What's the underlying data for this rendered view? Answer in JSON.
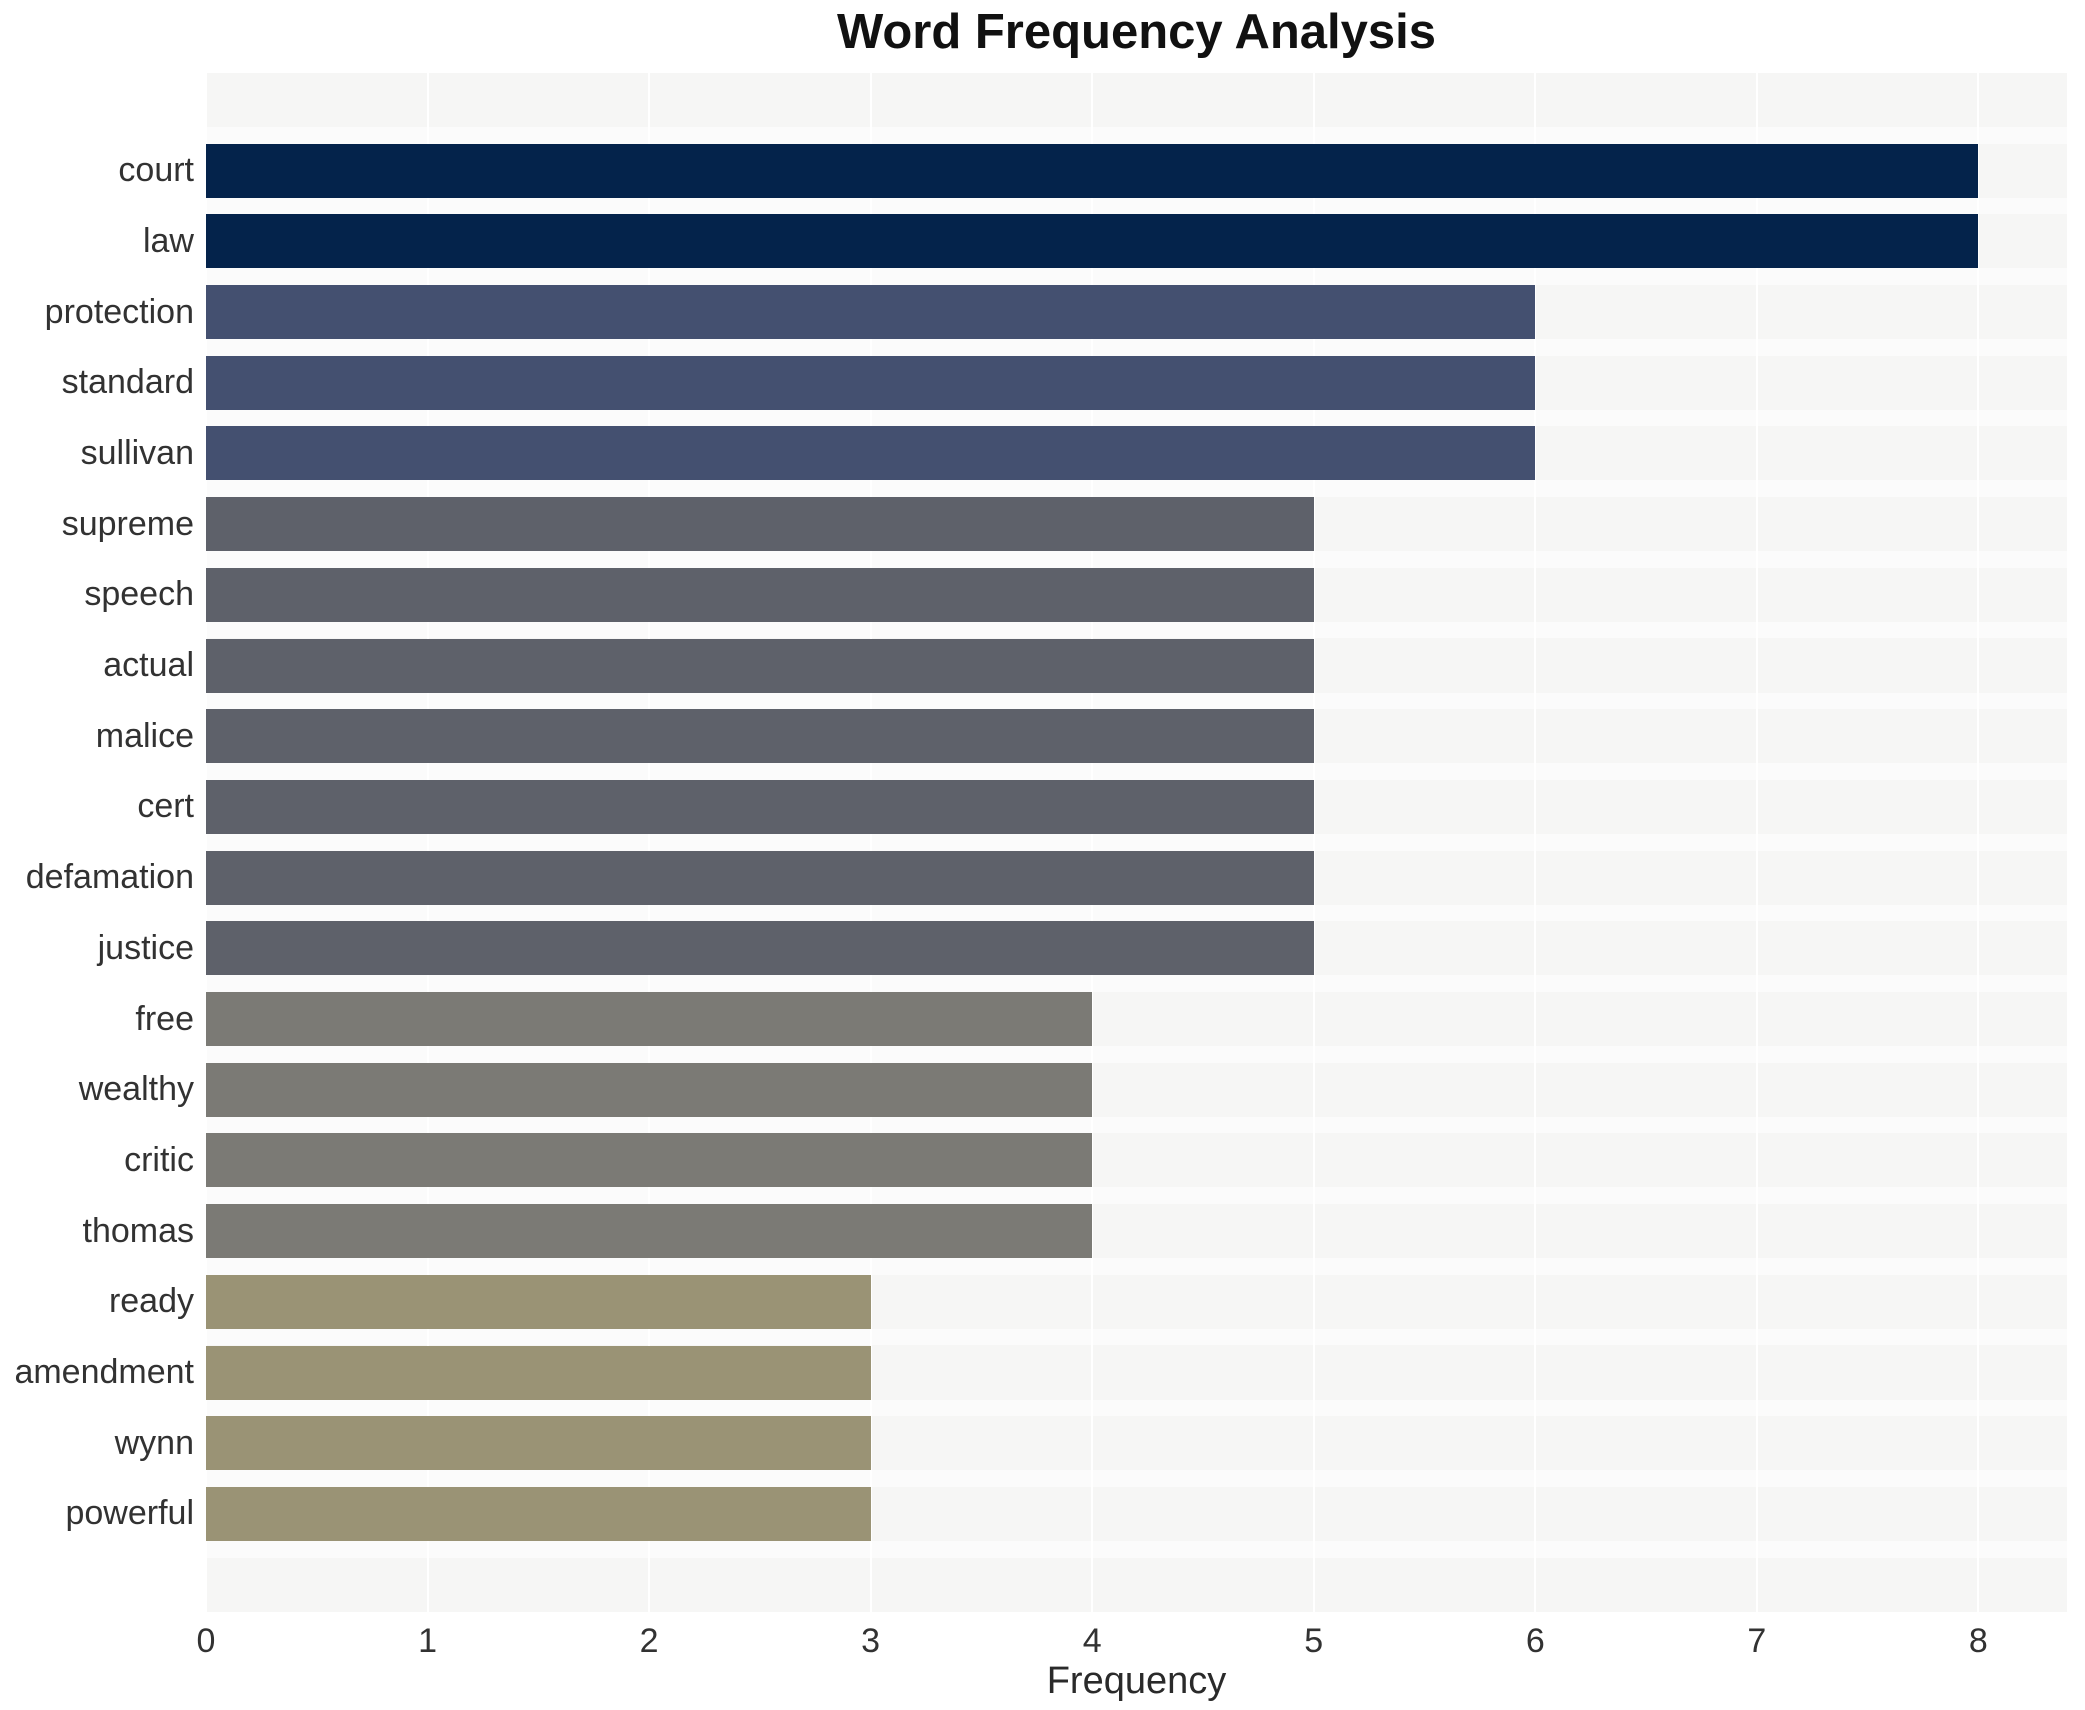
{
  "title": "Word Frequency Analysis",
  "chart_data": {
    "type": "bar",
    "orientation": "horizontal",
    "title": "Word Frequency Analysis",
    "xlabel": "Frequency",
    "ylabel": "",
    "categories": [
      "court",
      "law",
      "protection",
      "standard",
      "sullivan",
      "supreme",
      "speech",
      "actual",
      "malice",
      "cert",
      "defamation",
      "justice",
      "free",
      "wealthy",
      "critic",
      "thomas",
      "ready",
      "amendment",
      "wynn",
      "powerful"
    ],
    "values": [
      8,
      8,
      6,
      6,
      6,
      5,
      5,
      5,
      5,
      5,
      5,
      5,
      4,
      4,
      4,
      4,
      3,
      3,
      3,
      3
    ],
    "xticks": [
      0,
      1,
      2,
      3,
      4,
      5,
      6,
      7,
      8
    ],
    "xlim": [
      0,
      8.4
    ],
    "grid": "vertical-white-gridlines",
    "legend": "none",
    "plot_background": "#f6f6f5",
    "page_background": "#ffffff",
    "gridline_color": "#ffffff",
    "label_color": "#323232",
    "title_color": "#111111",
    "value_color_map": {
      "8": "#04234b",
      "6": "#445070",
      "5": "#5e616a",
      "4": "#7b7a75",
      "3": "#9a9375"
    }
  }
}
